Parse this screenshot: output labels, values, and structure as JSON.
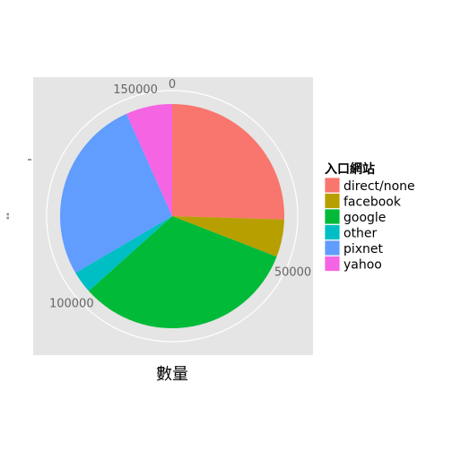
{
  "chart_data": {
    "type": "pie",
    "xlabel": "數量",
    "ylabel": "\"\"",
    "legend_title": "入口網站",
    "legend_position": "right",
    "grid": true,
    "radial_ticks": [
      {
        "value": 0,
        "label": "0"
      },
      {
        "value": 50000,
        "label": "50000"
      },
      {
        "value": 100000,
        "label": "100000"
      },
      {
        "value": 150000,
        "label": "150000"
      }
    ],
    "total": 157000,
    "slices": [
      {
        "name": "direct/none",
        "value": 40000,
        "color": "#F8766D"
      },
      {
        "name": "facebook",
        "value": 8500,
        "color": "#B79F00"
      },
      {
        "name": "google",
        "value": 51000,
        "color": "#00BA38"
      },
      {
        "name": "other",
        "value": 5000,
        "color": "#00BFC4"
      },
      {
        "name": "pixnet",
        "value": 42000,
        "color": "#619CFF"
      },
      {
        "name": "yahoo",
        "value": 10500,
        "color": "#F564E3"
      }
    ]
  }
}
